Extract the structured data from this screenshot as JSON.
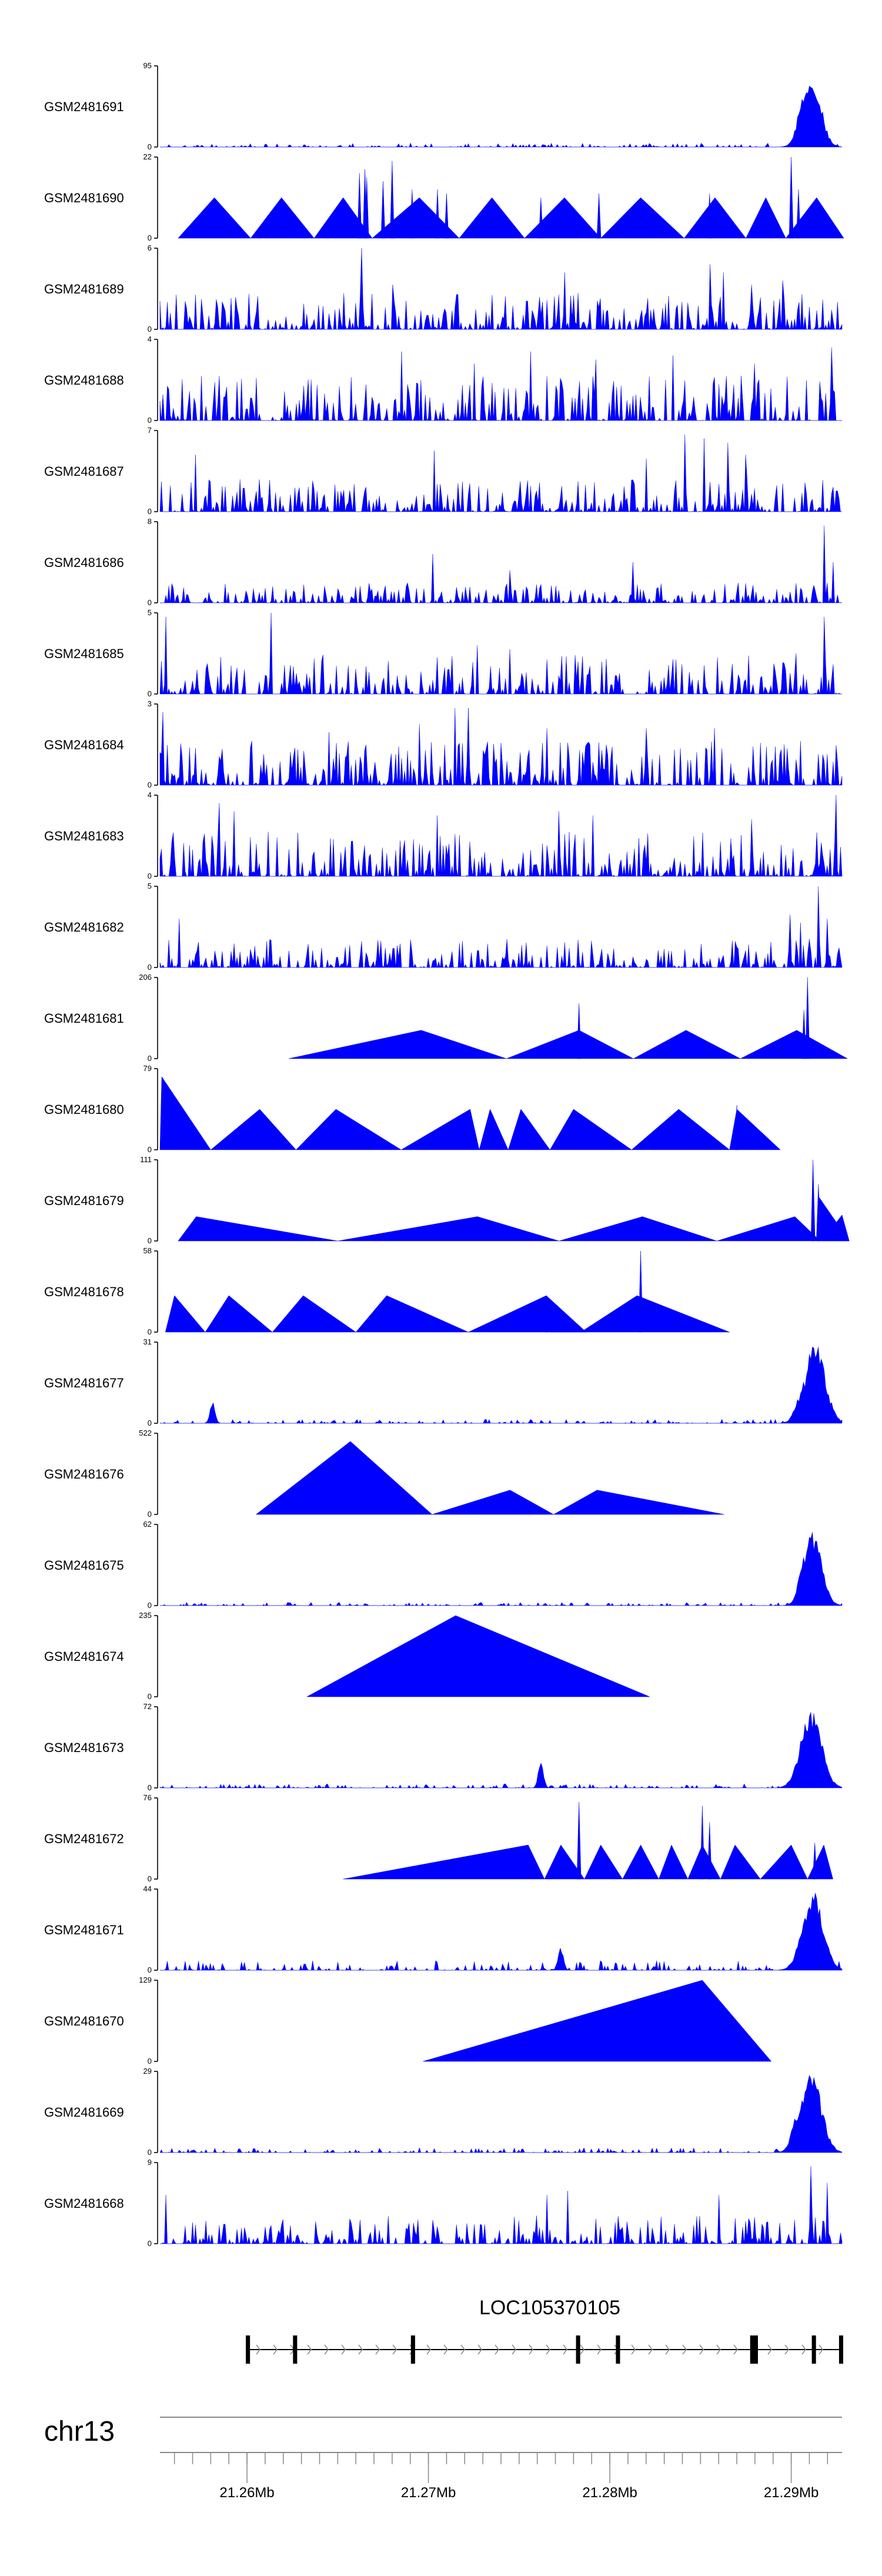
{
  "chart_data": {
    "type": "area",
    "x_domain": [
      21.2547,
      21.2923
    ],
    "tracks": [
      {
        "name": "GSM2481691",
        "ymax": "95",
        "pattern": "noise_peak",
        "scale": 0.05,
        "seed": 11,
        "peaks": [
          {
            "x": 21.2906,
            "h": 1.0,
            "w": 0.0007
          },
          {
            "x": 21.2901,
            "h": 0.6,
            "w": 0.0004
          }
        ]
      },
      {
        "name": "GSM2481690",
        "ymax": "22",
        "pattern": "tri",
        "seed": 12,
        "tris": [
          [
            21.2557,
            21.2577,
            21.2597,
            0.5
          ],
          [
            21.2597,
            21.2614,
            21.2632,
            0.5
          ],
          [
            21.2632,
            21.2648,
            21.2664,
            0.5
          ],
          [
            21.2664,
            21.269,
            21.2712,
            0.5
          ],
          [
            21.2712,
            21.273,
            21.2748,
            0.5
          ],
          [
            21.2748,
            21.277,
            21.279,
            0.5
          ],
          [
            21.279,
            21.2812,
            21.2836,
            0.5
          ],
          [
            21.2836,
            21.2853,
            21.287,
            0.5
          ],
          [
            21.287,
            21.2881,
            21.2892,
            0.5
          ],
          [
            21.2892,
            21.2909,
            21.2924,
            0.5
          ]
        ],
        "spikes": [
          [
            21.2657,
            0.8
          ],
          [
            21.2661,
            0.75
          ],
          [
            21.2675,
            0.95
          ],
          [
            21.266,
            0.85
          ],
          [
            21.267,
            0.7
          ],
          [
            21.2686,
            0.6
          ],
          [
            21.27,
            0.6
          ],
          [
            21.2705,
            0.55
          ],
          [
            21.2757,
            0.5
          ],
          [
            21.2789,
            0.55
          ],
          [
            21.285,
            0.55
          ],
          [
            21.2895,
            1.0
          ],
          [
            21.2899,
            0.6
          ]
        ]
      },
      {
        "name": "GSM2481689",
        "ymax": "6",
        "pattern": "noise",
        "scale": 0.45,
        "seed": 13,
        "spikes": [
          [
            21.2658,
            1.0
          ],
          [
            21.2675,
            0.55
          ],
          [
            21.277,
            0.7
          ],
          [
            21.285,
            0.8
          ],
          [
            21.2858,
            0.7
          ],
          [
            21.2873,
            0.55
          ],
          [
            21.289,
            0.6
          ]
        ]
      },
      {
        "name": "GSM2481688",
        "ymax": "4",
        "pattern": "noise",
        "scale": 0.55,
        "seed": 14,
        "spikes": [
          [
            21.268,
            0.85
          ],
          [
            21.272,
            0.7
          ],
          [
            21.2751,
            0.85
          ],
          [
            21.2787,
            0.75
          ],
          [
            21.283,
            0.8
          ],
          [
            21.2875,
            0.7
          ],
          [
            21.2917,
            0.9
          ]
        ]
      },
      {
        "name": "GSM2481687",
        "ymax": "7",
        "pattern": "noise",
        "scale": 0.4,
        "seed": 15,
        "spikes": [
          [
            21.2567,
            0.7
          ],
          [
            21.2698,
            0.75
          ],
          [
            21.2815,
            0.65
          ],
          [
            21.2836,
            0.95
          ],
          [
            21.2847,
            0.9
          ],
          [
            21.286,
            0.85
          ],
          [
            21.287,
            0.7
          ]
        ]
      },
      {
        "name": "GSM2481686",
        "ymax": "8",
        "pattern": "noise",
        "scale": 0.25,
        "seed": 16,
        "spikes": [
          [
            21.2697,
            0.6
          ],
          [
            21.274,
            0.4
          ],
          [
            21.2808,
            0.5
          ],
          [
            21.2913,
            0.95
          ],
          [
            21.2918,
            0.5
          ]
        ]
      },
      {
        "name": "GSM2481685",
        "ymax": "5",
        "pattern": "noise",
        "scale": 0.5,
        "seed": 17,
        "spikes": [
          [
            21.255,
            0.95
          ],
          [
            21.2608,
            1.0
          ],
          [
            21.2722,
            0.6
          ],
          [
            21.274,
            0.55
          ],
          [
            21.2898,
            0.5
          ],
          [
            21.2913,
            0.95
          ]
        ]
      },
      {
        "name": "GSM2481684",
        "ymax": "3",
        "pattern": "noise",
        "scale": 0.55,
        "seed": 18,
        "spikes": [
          [
            21.2549,
            0.9
          ],
          [
            21.264,
            0.65
          ],
          [
            21.269,
            0.75
          ],
          [
            21.271,
            0.95
          ],
          [
            21.2717,
            0.95
          ],
          [
            21.276,
            0.7
          ],
          [
            21.2815,
            0.7
          ],
          [
            21.2853,
            0.7
          ]
        ]
      },
      {
        "name": "GSM2481683",
        "ymax": "4",
        "pattern": "noise",
        "scale": 0.55,
        "seed": 19,
        "spikes": [
          [
            21.258,
            0.9
          ],
          [
            21.2588,
            0.8
          ],
          [
            21.27,
            0.75
          ],
          [
            21.2767,
            0.8
          ],
          [
            21.2786,
            0.75
          ],
          [
            21.2873,
            0.7
          ],
          [
            21.292,
            1.0
          ]
        ]
      },
      {
        "name": "GSM2481682",
        "ymax": "5",
        "pattern": "noise",
        "scale": 0.35,
        "seed": 20,
        "spikes": [
          [
            21.2558,
            0.6
          ],
          [
            21.2894,
            0.65
          ],
          [
            21.29,
            0.55
          ],
          [
            21.291,
            1.0
          ],
          [
            21.2915,
            0.6
          ]
        ]
      },
      {
        "name": "GSM2481681",
        "ymax": "206",
        "pattern": "tri",
        "seed": 21,
        "tris": [
          [
            21.2618,
            21.2691,
            21.2738,
            0.35
          ],
          [
            21.2738,
            21.2778,
            21.2808,
            0.35
          ],
          [
            21.2808,
            21.2837,
            21.2867,
            0.35
          ],
          [
            21.2867,
            21.2898,
            21.2926,
            0.35
          ]
        ],
        "spikes": [
          [
            21.2778,
            0.68
          ],
          [
            21.2904,
            1.0
          ],
          [
            21.2902,
            0.6
          ]
        ]
      },
      {
        "name": "GSM2481680",
        "ymax": "79",
        "pattern": "tri",
        "seed": 22,
        "tris": [
          [
            21.2547,
            21.2548,
            21.2575,
            0.9
          ],
          [
            21.2575,
            21.2602,
            21.2622,
            0.5
          ],
          [
            21.2622,
            21.2644,
            21.268,
            0.5
          ],
          [
            21.268,
            21.2718,
            21.2723,
            0.5
          ],
          [
            21.2723,
            21.2729,
            21.2739,
            0.5
          ],
          [
            21.2739,
            21.2746,
            21.2762,
            0.5
          ],
          [
            21.2762,
            21.2775,
            21.2807,
            0.5
          ],
          [
            21.2807,
            21.2833,
            21.2861,
            0.5
          ],
          [
            21.2861,
            21.2865,
            21.2889,
            0.5
          ]
        ],
        "spikes": [
          [
            21.2865,
            0.55
          ]
        ]
      },
      {
        "name": "GSM2481679",
        "ymax": "111",
        "pattern": "tri",
        "seed": 23,
        "tris": [
          [
            21.2557,
            21.2567,
            21.2645,
            0.3
          ],
          [
            21.2645,
            21.2722,
            21.2767,
            0.3
          ],
          [
            21.2767,
            21.2813,
            21.2854,
            0.3
          ],
          [
            21.2854,
            21.2897,
            21.2911,
            0.3
          ],
          [
            21.2911,
            21.291,
            21.2927,
            0.55
          ],
          [
            21.2912,
            21.2923,
            21.2927,
            0.32
          ]
        ],
        "spikes": [
          [
            21.2907,
            1.0
          ],
          [
            21.291,
            0.7
          ]
        ]
      },
      {
        "name": "GSM2481678",
        "ymax": "58",
        "pattern": "tri",
        "seed": 24,
        "tris": [
          [
            21.255,
            21.2555,
            21.2572,
            0.45
          ],
          [
            21.2572,
            21.2585,
            21.2609,
            0.45
          ],
          [
            21.2609,
            21.2626,
            21.2655,
            0.45
          ],
          [
            21.2655,
            21.2672,
            21.2717,
            0.45
          ],
          [
            21.2717,
            21.276,
            21.2782,
            0.45
          ],
          [
            21.2762,
            21.2763,
            21.2779,
            0.25
          ],
          [
            21.2779,
            21.281,
            21.2861,
            0.45
          ]
        ],
        "spikes": [
          [
            21.2812,
            1.0
          ],
          [
            21.276,
            0.4
          ]
        ]
      },
      {
        "name": "GSM2481677",
        "ymax": "31",
        "pattern": "noise_peak",
        "scale": 0.05,
        "seed": 25,
        "peaks": [
          {
            "x": 21.2908,
            "h": 1.0,
            "w": 0.0008
          },
          {
            "x": 21.2901,
            "h": 0.4,
            "w": 0.0005
          },
          {
            "x": 21.2576,
            "h": 0.28,
            "w": 0.0002
          }
        ]
      },
      {
        "name": "GSM2481676",
        "ymax": "522",
        "pattern": "tri",
        "seed": 26,
        "tris": [
          [
            21.26,
            21.2652,
            21.2697,
            0.9
          ],
          [
            21.2697,
            21.274,
            21.2764,
            0.3
          ],
          [
            21.2764,
            21.2788,
            21.2858,
            0.3
          ]
        ],
        "spikes": []
      },
      {
        "name": "GSM2481675",
        "ymax": "62",
        "pattern": "noise_peak",
        "scale": 0.04,
        "seed": 27,
        "peaks": [
          {
            "x": 21.2907,
            "h": 0.95,
            "w": 0.0007
          },
          {
            "x": 21.2902,
            "h": 0.6,
            "w": 0.0004
          }
        ]
      },
      {
        "name": "GSM2481674",
        "ymax": "235",
        "pattern": "tri",
        "seed": 28,
        "tris": [
          [
            21.2628,
            21.271,
            21.2817,
            1.0
          ]
        ],
        "spikes": []
      },
      {
        "name": "GSM2481673",
        "ymax": "72",
        "pattern": "noise_peak",
        "scale": 0.05,
        "seed": 29,
        "peaks": [
          {
            "x": 21.2906,
            "h": 1.0,
            "w": 0.0008
          },
          {
            "x": 21.2757,
            "h": 0.35,
            "w": 0.0002
          }
        ]
      },
      {
        "name": "GSM2481672",
        "ymax": "76",
        "pattern": "tri",
        "seed": 30,
        "tris": [
          [
            21.2648,
            21.275,
            21.2759,
            0.42
          ],
          [
            21.2759,
            21.2768,
            21.2781,
            0.42
          ],
          [
            21.2781,
            21.279,
            21.2802,
            0.42
          ],
          [
            21.2802,
            21.2812,
            21.2822,
            0.42
          ],
          [
            21.2822,
            21.2829,
            21.2838,
            0.42
          ],
          [
            21.2838,
            21.2846,
            21.2856,
            0.42
          ],
          [
            21.2856,
            21.2864,
            21.2878,
            0.42
          ],
          [
            21.2878,
            21.2895,
            21.2904,
            0.42
          ],
          [
            21.2904,
            21.2913,
            21.2918,
            0.42
          ]
        ],
        "spikes": [
          [
            21.2778,
            0.95
          ],
          [
            21.2846,
            0.9
          ],
          [
            21.285,
            0.7
          ],
          [
            21.2908,
            0.45
          ]
        ]
      },
      {
        "name": "GSM2481671",
        "ymax": "44",
        "pattern": "noise_peak",
        "scale": 0.12,
        "seed": 31,
        "peaks": [
          {
            "x": 21.2907,
            "h": 1.0,
            "w": 0.0008
          },
          {
            "x": 21.2768,
            "h": 0.3,
            "w": 0.0002
          }
        ]
      },
      {
        "name": "GSM2481670",
        "ymax": "129",
        "pattern": "tri",
        "seed": 32,
        "tris": [
          [
            21.2692,
            21.2846,
            21.2884,
            1.0
          ]
        ],
        "spikes": []
      },
      {
        "name": "GSM2481669",
        "ymax": "29",
        "pattern": "noise_peak",
        "scale": 0.06,
        "seed": 33,
        "peaks": [
          {
            "x": 21.2906,
            "h": 1.0,
            "w": 0.0008
          },
          {
            "x": 21.2899,
            "h": 0.5,
            "w": 0.0005
          }
        ]
      },
      {
        "name": "GSM2481668",
        "ymax": "9",
        "pattern": "noise",
        "scale": 0.35,
        "seed": 34,
        "spikes": [
          [
            21.255,
            0.6
          ],
          [
            21.276,
            0.6
          ],
          [
            21.2772,
            0.65
          ],
          [
            21.2855,
            0.6
          ],
          [
            21.2906,
            0.95
          ],
          [
            21.2915,
            0.75
          ]
        ]
      }
    ],
    "gene": {
      "name": "LOC105370105",
      "start": 21.2595,
      "end": 21.2923,
      "exons": [
        [
          21.2595,
          21.2596
        ],
        [
          21.2621,
          21.2622
        ],
        [
          21.2686,
          21.2687
        ],
        [
          21.2777,
          21.2778
        ],
        [
          21.2799,
          21.28
        ],
        [
          21.2873,
          21.2876
        ],
        [
          21.2907,
          21.2908
        ],
        [
          21.2922,
          21.2923
        ]
      ]
    },
    "axis": {
      "chromosome": "chr13",
      "ticks": [
        21.2555,
        21.2565,
        21.2575,
        21.2585,
        21.2595,
        21.2605,
        21.2615,
        21.2625,
        21.2635,
        21.2645,
        21.2655,
        21.2665,
        21.2675,
        21.2685,
        21.2695,
        21.2705,
        21.2715,
        21.2725,
        21.2735,
        21.2745,
        21.2755,
        21.2765,
        21.2775,
        21.2785,
        21.2795,
        21.2805,
        21.2815,
        21.2825,
        21.2835,
        21.2845,
        21.2855,
        21.2865,
        21.2875,
        21.2885,
        21.2895,
        21.2905,
        21.2915
      ],
      "labels": [
        {
          "x": 21.2595,
          "text": "21.26Mb"
        },
        {
          "x": 21.2695,
          "text": "21.27Mb"
        },
        {
          "x": 21.2795,
          "text": "21.28Mb"
        },
        {
          "x": 21.2895,
          "text": "21.29Mb"
        }
      ]
    }
  }
}
